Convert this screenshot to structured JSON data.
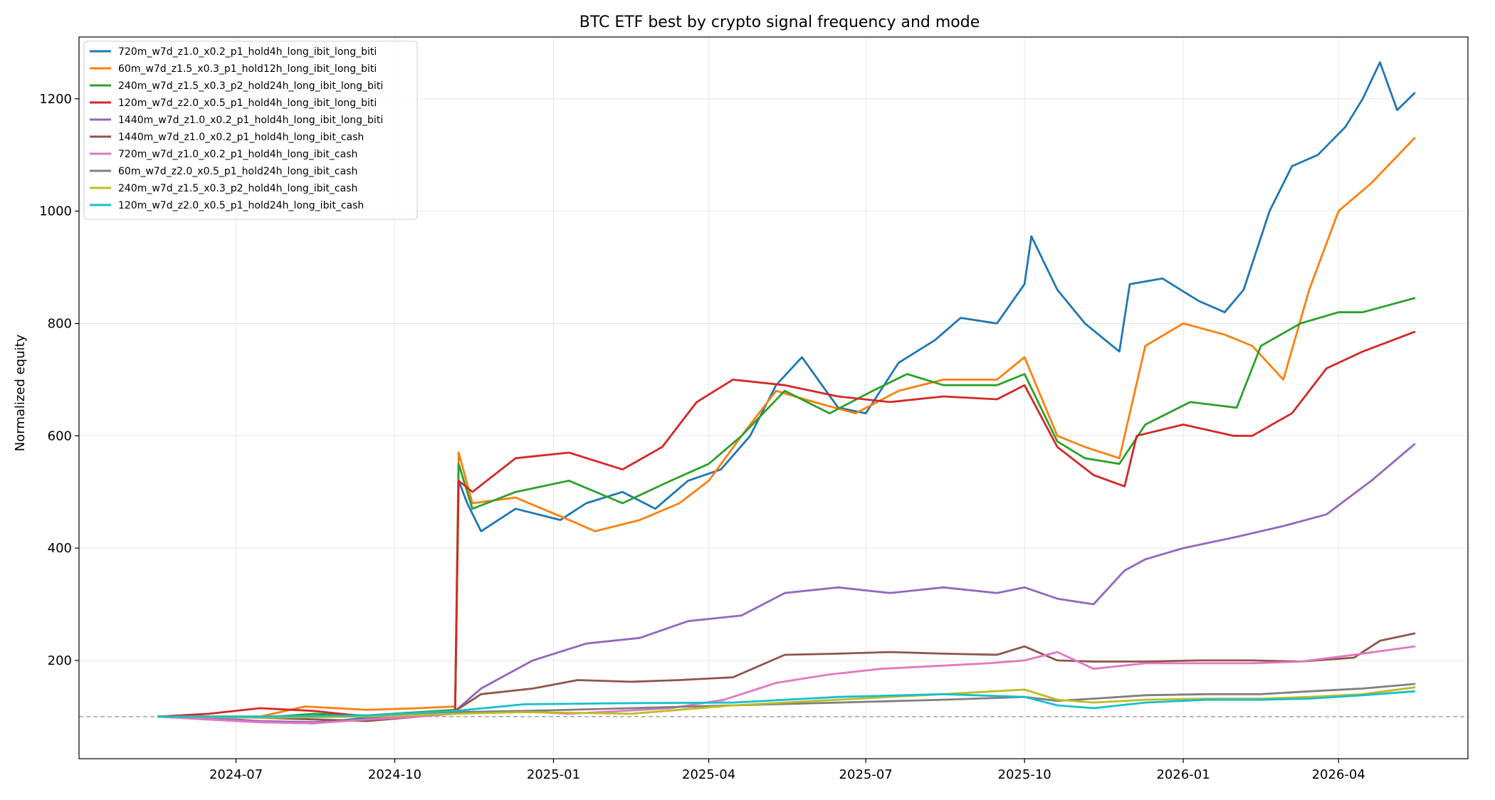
{
  "chart_data": {
    "type": "line",
    "title": "BTC ETF best by crypto signal frequency and mode",
    "xlabel": "",
    "ylabel": "Normalized equity",
    "x_domain": [
      "2024-04-01",
      "2026-06-15"
    ],
    "ylim": [
      25,
      1310
    ],
    "x_ticks": [
      {
        "date": "2024-07-01",
        "label": "2024-07"
      },
      {
        "date": "2024-10-01",
        "label": "2024-10"
      },
      {
        "date": "2025-01-01",
        "label": "2025-01"
      },
      {
        "date": "2025-04-01",
        "label": "2025-04"
      },
      {
        "date": "2025-07-01",
        "label": "2025-07"
      },
      {
        "date": "2025-10-01",
        "label": "2025-10"
      },
      {
        "date": "2026-01-01",
        "label": "2026-01"
      },
      {
        "date": "2026-04-01",
        "label": "2026-04"
      }
    ],
    "y_ticks": [
      {
        "value": 200,
        "label": "200"
      },
      {
        "value": 400,
        "label": "400"
      },
      {
        "value": 600,
        "label": "600"
      },
      {
        "value": 800,
        "label": "800"
      },
      {
        "value": 1000,
        "label": "1000"
      },
      {
        "value": 1200,
        "label": "1200"
      }
    ],
    "baseline": 100,
    "grid": true,
    "legend_position": "top-left",
    "series": [
      {
        "name": "720m_w7d_z1.0_x0.2_p1_hold4h_long_ibit_long_biti",
        "color": "#1f77b4",
        "x": [
          "2024-05-17",
          "2024-06-15",
          "2024-07-15",
          "2024-08-15",
          "2024-09-15",
          "2024-10-15",
          "2024-11-05",
          "2024-11-07",
          "2024-11-12",
          "2024-11-20",
          "2024-12-10",
          "2025-01-05",
          "2025-01-20",
          "2025-02-10",
          "2025-03-01",
          "2025-03-20",
          "2025-04-08",
          "2025-04-25",
          "2025-05-10",
          "2025-05-25",
          "2025-06-15",
          "2025-07-01",
          "2025-07-20",
          "2025-08-10",
          "2025-08-25",
          "2025-09-15",
          "2025-10-01",
          "2025-10-05",
          "2025-10-20",
          "2025-11-05",
          "2025-11-25",
          "2025-12-01",
          "2025-12-20",
          "2026-01-10",
          "2026-01-25",
          "2026-02-05",
          "2026-02-20",
          "2026-03-05",
          "2026-03-20",
          "2026-04-05",
          "2026-04-15",
          "2026-04-25",
          "2026-05-05",
          "2026-05-15"
        ],
        "y": [
          100,
          95,
          90,
          88,
          98,
          105,
          110,
          520,
          480,
          430,
          470,
          450,
          480,
          500,
          470,
          520,
          540,
          600,
          690,
          740,
          650,
          640,
          730,
          770,
          810,
          800,
          870,
          955,
          860,
          800,
          750,
          870,
          880,
          840,
          820,
          860,
          1000,
          1080,
          1100,
          1150,
          1200,
          1265,
          1180,
          1210
        ]
      },
      {
        "name": "60m_w7d_z1.5_x0.3_p1_hold12h_long_ibit_long_biti",
        "color": "#ff7f0e",
        "x": [
          "2024-05-17",
          "2024-06-15",
          "2024-07-15",
          "2024-08-10",
          "2024-09-15",
          "2024-10-15",
          "2024-11-05",
          "2024-11-07",
          "2024-11-15",
          "2024-12-10",
          "2025-01-10",
          "2025-01-25",
          "2025-02-20",
          "2025-03-15",
          "2025-04-01",
          "2025-04-20",
          "2025-05-10",
          "2025-06-01",
          "2025-06-25",
          "2025-07-20",
          "2025-08-15",
          "2025-09-15",
          "2025-10-01",
          "2025-10-20",
          "2025-11-05",
          "2025-11-25",
          "2025-12-10",
          "2026-01-01",
          "2026-01-25",
          "2026-02-10",
          "2026-02-28",
          "2026-03-15",
          "2026-04-01",
          "2026-04-20",
          "2026-05-15"
        ],
        "y": [
          100,
          100,
          100,
          118,
          112,
          115,
          118,
          570,
          480,
          490,
          450,
          430,
          450,
          480,
          520,
          600,
          680,
          660,
          640,
          680,
          700,
          700,
          740,
          600,
          580,
          560,
          760,
          800,
          780,
          760,
          700,
          860,
          1000,
          1050,
          1130
        ]
      },
      {
        "name": "240m_w7d_z1.5_x0.3_p2_hold24h_long_ibit_long_biti",
        "color": "#2ca02c",
        "x": [
          "2024-05-17",
          "2024-06-15",
          "2024-07-15",
          "2024-08-15",
          "2024-09-15",
          "2024-10-15",
          "2024-11-05",
          "2024-11-07",
          "2024-11-15",
          "2024-12-10",
          "2025-01-10",
          "2025-02-10",
          "2025-03-10",
          "2025-04-01",
          "2025-04-20",
          "2025-05-15",
          "2025-06-10",
          "2025-07-05",
          "2025-07-25",
          "2025-08-15",
          "2025-09-15",
          "2025-10-01",
          "2025-10-20",
          "2025-11-05",
          "2025-11-25",
          "2025-12-10",
          "2026-01-05",
          "2026-02-01",
          "2026-02-15",
          "2026-03-10",
          "2026-04-01",
          "2026-04-15",
          "2026-05-15"
        ],
        "y": [
          100,
          100,
          98,
          105,
          102,
          108,
          112,
          550,
          470,
          500,
          520,
          480,
          520,
          550,
          600,
          680,
          640,
          680,
          710,
          690,
          690,
          710,
          590,
          560,
          550,
          620,
          660,
          650,
          760,
          800,
          820,
          820,
          845
        ]
      },
      {
        "name": "120m_w7d_z2.0_x0.5_p1_hold4h_long_ibit_long_biti",
        "color": "#d62728",
        "x": [
          "2024-05-17",
          "2024-06-15",
          "2024-07-15",
          "2024-08-15",
          "2024-09-15",
          "2024-10-15",
          "2024-11-05",
          "2024-11-07",
          "2024-11-15",
          "2024-12-10",
          "2025-01-10",
          "2025-02-10",
          "2025-03-05",
          "2025-03-25",
          "2025-04-15",
          "2025-05-15",
          "2025-06-15",
          "2025-07-15",
          "2025-08-15",
          "2025-09-15",
          "2025-10-01",
          "2025-10-20",
          "2025-11-10",
          "2025-11-28",
          "2025-12-05",
          "2026-01-01",
          "2026-01-30",
          "2026-02-10",
          "2026-03-05",
          "2026-03-25",
          "2026-04-15",
          "2026-05-15"
        ],
        "y": [
          100,
          105,
          115,
          110,
          100,
          105,
          110,
          520,
          500,
          560,
          570,
          540,
          580,
          660,
          700,
          690,
          670,
          660,
          670,
          665,
          690,
          580,
          530,
          510,
          600,
          620,
          600,
          600,
          640,
          720,
          750,
          785
        ]
      },
      {
        "name": "1440m_w7d_z1.0_x0.2_p1_hold4h_long_ibit_long_biti",
        "color": "#9467bd",
        "x": [
          "2024-05-17",
          "2024-06-15",
          "2024-07-15",
          "2024-08-15",
          "2024-09-15",
          "2024-10-15",
          "2024-11-05",
          "2024-11-20",
          "2024-12-20",
          "2025-01-20",
          "2025-02-20",
          "2025-03-20",
          "2025-04-20",
          "2025-05-15",
          "2025-06-15",
          "2025-07-15",
          "2025-08-15",
          "2025-09-15",
          "2025-10-01",
          "2025-10-20",
          "2025-11-10",
          "2025-11-28",
          "2025-12-10",
          "2026-01-01",
          "2026-02-01",
          "2026-03-01",
          "2026-03-25",
          "2026-04-20",
          "2026-05-15"
        ],
        "y": [
          100,
          98,
          92,
          90,
          95,
          100,
          110,
          150,
          200,
          230,
          240,
          270,
          280,
          320,
          330,
          320,
          330,
          320,
          330,
          310,
          300,
          360,
          380,
          400,
          420,
          440,
          460,
          520,
          585
        ]
      },
      {
        "name": "1440m_w7d_z1.0_x0.2_p1_hold4h_long_ibit_cash",
        "color": "#8c564b",
        "x": [
          "2024-05-17",
          "2024-06-15",
          "2024-07-15",
          "2024-08-15",
          "2024-09-15",
          "2024-10-15",
          "2024-11-05",
          "2024-11-20",
          "2024-12-20",
          "2025-01-15",
          "2025-02-15",
          "2025-03-15",
          "2025-04-15",
          "2025-05-15",
          "2025-06-15",
          "2025-07-15",
          "2025-08-15",
          "2025-09-15",
          "2025-10-01",
          "2025-10-20",
          "2025-11-10",
          "2025-12-10",
          "2026-01-10",
          "2026-02-10",
          "2026-03-10",
          "2026-04-10",
          "2026-04-25",
          "2026-05-15"
        ],
        "y": [
          100,
          100,
          98,
          95,
          92,
          100,
          110,
          140,
          150,
          165,
          162,
          165,
          170,
          210,
          212,
          215,
          212,
          210,
          225,
          200,
          198,
          198,
          200,
          200,
          198,
          205,
          235,
          248
        ]
      },
      {
        "name": "720m_w7d_z1.0_x0.2_p1_hold4h_long_ibit_cash",
        "color": "#e377c2",
        "x": [
          "2024-05-17",
          "2024-06-15",
          "2024-07-15",
          "2024-08-15",
          "2024-09-15",
          "2024-10-15",
          "2024-11-05",
          "2024-12-10",
          "2025-01-10",
          "2025-02-10",
          "2025-03-10",
          "2025-04-10",
          "2025-05-10",
          "2025-06-10",
          "2025-07-10",
          "2025-08-10",
          "2025-09-10",
          "2025-10-01",
          "2025-10-20",
          "2025-11-10",
          "2025-12-10",
          "2026-01-10",
          "2026-02-10",
          "2026-03-10",
          "2026-04-10",
          "2026-05-15"
        ],
        "y": [
          100,
          95,
          90,
          88,
          95,
          100,
          105,
          110,
          105,
          110,
          115,
          130,
          160,
          175,
          185,
          190,
          195,
          200,
          215,
          185,
          195,
          195,
          195,
          198,
          210,
          225
        ]
      },
      {
        "name": "60m_w7d_z2.0_x0.5_p1_hold24h_long_ibit_cash",
        "color": "#7f7f7f",
        "x": [
          "2024-05-17",
          "2024-07-15",
          "2024-09-15",
          "2024-11-05",
          "2024-12-15",
          "2025-02-15",
          "2025-04-15",
          "2025-06-15",
          "2025-08-15",
          "2025-10-01",
          "2025-10-20",
          "2025-11-10",
          "2025-12-10",
          "2026-01-15",
          "2026-02-15",
          "2026-03-15",
          "2026-04-15",
          "2026-05-15"
        ],
        "y": [
          100,
          100,
          102,
          108,
          110,
          115,
          120,
          125,
          130,
          135,
          128,
          132,
          138,
          140,
          140,
          145,
          150,
          158
        ]
      },
      {
        "name": "240m_w7d_z1.5_x0.3_p2_hold4h_long_ibit_cash",
        "color": "#bcbd22",
        "x": [
          "2024-05-17",
          "2024-07-15",
          "2024-09-15",
          "2024-11-05",
          "2024-12-15",
          "2025-02-15",
          "2025-04-15",
          "2025-06-15",
          "2025-08-15",
          "2025-10-01",
          "2025-10-20",
          "2025-11-10",
          "2025-12-10",
          "2026-01-15",
          "2026-02-15",
          "2026-03-15",
          "2026-04-15",
          "2026-05-15"
        ],
        "y": [
          100,
          98,
          100,
          105,
          108,
          105,
          120,
          130,
          140,
          148,
          130,
          125,
          130,
          132,
          132,
          135,
          140,
          152
        ]
      },
      {
        "name": "120m_w7d_z2.0_x0.5_p1_hold24h_long_ibit_cash",
        "color": "#17becf",
        "x": [
          "2024-05-17",
          "2024-07-15",
          "2024-09-15",
          "2024-11-05",
          "2024-12-15",
          "2025-02-15",
          "2025-04-15",
          "2025-06-15",
          "2025-08-15",
          "2025-10-01",
          "2025-10-20",
          "2025-11-10",
          "2025-12-10",
          "2026-01-15",
          "2026-02-15",
          "2026-03-15",
          "2026-04-15",
          "2026-05-15"
        ],
        "y": [
          100,
          100,
          102,
          110,
          122,
          124,
          125,
          135,
          140,
          135,
          120,
          115,
          125,
          130,
          130,
          132,
          138,
          145
        ]
      }
    ]
  }
}
